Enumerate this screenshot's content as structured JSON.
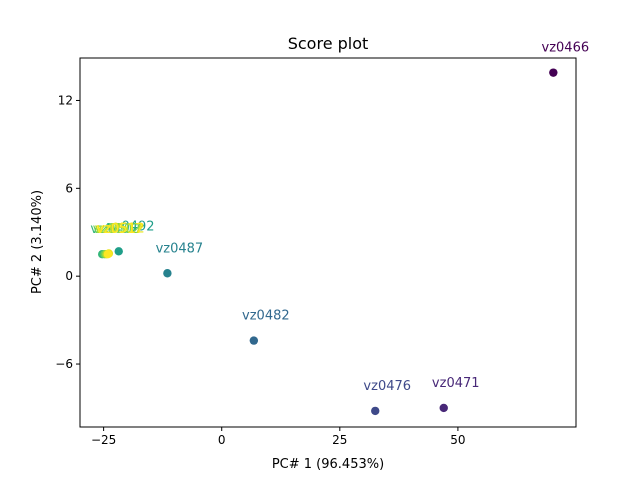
{
  "chart_data": {
    "type": "scatter",
    "title": "Score plot",
    "xlabel": "PC# 1 (96.453%)",
    "ylabel": "PC# 2 (3.140%)",
    "xlim": [
      -30,
      75
    ],
    "ylim": [
      -10.3,
      14.9
    ],
    "xticks": [
      -25,
      0,
      25,
      50
    ],
    "yticks": [
      -6,
      0,
      6,
      12
    ],
    "xtick_labels": [
      "−25",
      "0",
      "25",
      "50"
    ],
    "ytick_labels": [
      "−6",
      "0",
      "6",
      "12"
    ],
    "grid": false,
    "colormap": "viridis",
    "points": [
      {
        "label": "vz0466",
        "x": 70.2,
        "y": 13.9,
        "color": "#440154"
      },
      {
        "label": "vz0471",
        "x": 47.0,
        "y": -9.0,
        "color": "#482878"
      },
      {
        "label": "vz0476",
        "x": 32.5,
        "y": -9.2,
        "color": "#3e4989"
      },
      {
        "label": "vz0482",
        "x": 6.8,
        "y": -4.4,
        "color": "#31688e"
      },
      {
        "label": "vz0487",
        "x": -11.5,
        "y": 0.2,
        "color": "#26828e"
      },
      {
        "label": "vz0492",
        "x": -21.8,
        "y": 1.7,
        "color": "#1f9e89"
      },
      {
        "label": "vz0497",
        "x": -25.3,
        "y": 1.5,
        "color": "#35b779"
      },
      {
        "label": "vz0502",
        "x": -24.8,
        "y": 1.5,
        "color": "#6ece58"
      },
      {
        "label": "vz0507",
        "x": -24.4,
        "y": 1.5,
        "color": "#b5de2b"
      },
      {
        "label": "vz0512",
        "x": -23.9,
        "y": 1.55,
        "color": "#e8e419"
      },
      {
        "label": "vz0517",
        "x": -24.1,
        "y": 1.5,
        "color": "#fde725"
      }
    ]
  }
}
